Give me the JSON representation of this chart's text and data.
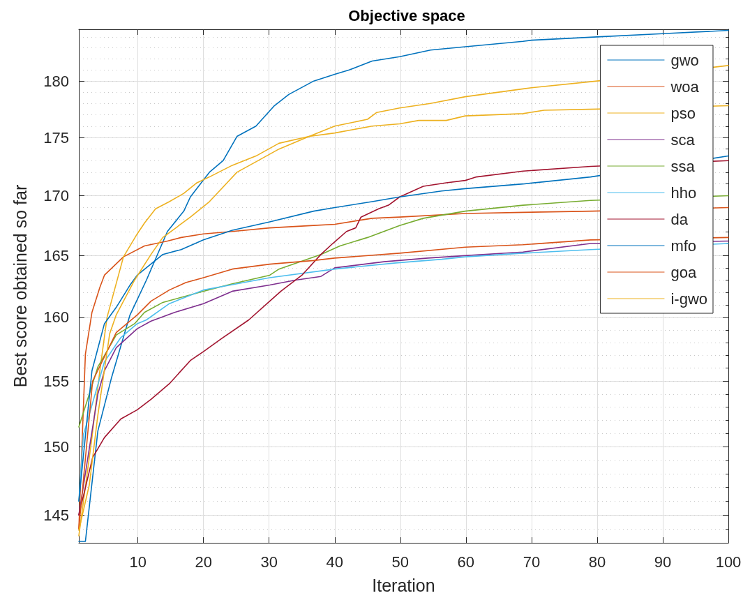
{
  "chart_data": {
    "type": "line",
    "title": "Objective space",
    "xlabel": "Iteration",
    "ylabel": "Best score obtained so far",
    "xlim": [
      1,
      100
    ],
    "xticks": [
      10,
      20,
      30,
      40,
      50,
      60,
      70,
      80,
      90,
      100
    ],
    "ylim": [
      143.0,
      184.7
    ],
    "yticks": [
      145,
      150,
      155,
      160,
      165,
      170,
      175,
      180
    ],
    "log": "y",
    "grid": true,
    "legend": "top right",
    "marker": "none",
    "line_style": "solid",
    "series": [
      {
        "name": "gwo",
        "color": "#0072bd",
        "x": [
          1,
          2,
          3.9,
          6,
          8.8,
          11.3,
          14.5,
          17,
          18,
          20.9,
          23,
          25.1,
          28,
          30.8,
          33,
          36.8,
          40,
          42.2,
          45.7,
          49.9,
          54.6,
          59.9,
          68.7,
          70,
          80,
          90,
          100
        ],
        "values": [
          143.1,
          143.1,
          151.2,
          155.3,
          160.2,
          163.0,
          167.0,
          168.7,
          169.9,
          172.0,
          173.0,
          175.1,
          176.0,
          177.8,
          178.8,
          180.0,
          180.6,
          181.0,
          181.8,
          182.2,
          182.8,
          183.1,
          183.6,
          183.7,
          184.0,
          184.3,
          184.6
        ]
      },
      {
        "name": "woa",
        "color": "#d95319",
        "x": [
          1,
          2,
          3,
          4.2,
          4.9,
          7.8,
          11,
          14.5,
          16.6,
          20,
          24.4,
          30.1,
          36.8,
          40,
          45.7,
          49.9,
          59.9,
          68.7,
          79.3,
          100
        ],
        "values": [
          144.0,
          157.1,
          160.4,
          162.4,
          163.4,
          164.9,
          165.8,
          166.2,
          166.5,
          166.8,
          167.0,
          167.3,
          167.5,
          167.6,
          168.1,
          168.2,
          168.5,
          168.6,
          168.7,
          169.0
        ]
      },
      {
        "name": "pso",
        "color": "#edb120",
        "x": [
          1,
          3,
          4.2,
          5.3,
          7.8,
          9.9,
          11,
          12.7,
          14.8,
          17,
          19,
          20.9,
          24.4,
          28,
          31.5,
          36.1,
          40,
          45.7,
          49.9,
          52.8,
          57,
          59.9,
          68.7,
          71.9,
          80,
          100
        ],
        "values": [
          143.5,
          150.7,
          155.8,
          160.0,
          164.9,
          166.8,
          167.7,
          168.9,
          169.5,
          170.2,
          171.1,
          171.6,
          172.6,
          173.4,
          174.5,
          175.1,
          175.4,
          176.0,
          176.2,
          176.5,
          176.5,
          176.9,
          177.1,
          177.4,
          177.5,
          177.8
        ]
      },
      {
        "name": "sca",
        "color": "#7e2f8e",
        "x": [
          1,
          3.9,
          4.9,
          6.7,
          9.9,
          12,
          15.6,
          20,
          24.4,
          30.1,
          34,
          37.9,
          40,
          47.5,
          54.2,
          59.9,
          68.7,
          79,
          100
        ],
        "values": [
          145.0,
          154.0,
          155.8,
          157.6,
          159.1,
          159.7,
          160.4,
          161.1,
          162.1,
          162.6,
          163.0,
          163.3,
          164.0,
          164.5,
          164.8,
          165.0,
          165.3,
          166.0,
          166.2
        ]
      },
      {
        "name": "ssa",
        "color": "#77ac30",
        "x": [
          1,
          3.9,
          6.7,
          9.5,
          11,
          13.8,
          20,
          24.4,
          30.1,
          31.5,
          37.9,
          40.8,
          45,
          49.9,
          53.5,
          59.9,
          68.7,
          79,
          100
        ],
        "values": [
          151.5,
          156.1,
          158.6,
          159.5,
          160.4,
          161.2,
          162.1,
          162.7,
          163.4,
          163.9,
          165.1,
          165.8,
          166.5,
          167.5,
          168.1,
          168.7,
          169.2,
          169.6,
          170.0
        ]
      },
      {
        "name": "hho",
        "color": "#4dbeee",
        "x": [
          1,
          1.7,
          4.9,
          7.4,
          9.9,
          11.3,
          14.8,
          20,
          25.1,
          30.1,
          40,
          49.3,
          56.3,
          59.9,
          68.7,
          79,
          100
        ],
        "values": [
          146.0,
          150.9,
          156.5,
          158.4,
          159.5,
          159.8,
          161.1,
          162.2,
          162.7,
          163.2,
          163.9,
          164.4,
          164.7,
          164.9,
          165.2,
          165.5,
          166.0
        ]
      },
      {
        "name": "da",
        "color": "#a2142f",
        "x": [
          1,
          3.1,
          4.9,
          7.4,
          9.9,
          12,
          14.8,
          18,
          20,
          22.7,
          26.9,
          30.1,
          31.8,
          35,
          37.9,
          39.7,
          41.8,
          43.2,
          44,
          46.7,
          48.2,
          49.9,
          53.5,
          57,
          59.9,
          61.6,
          68.7,
          79,
          100
        ],
        "values": [
          145.0,
          149.2,
          150.7,
          152.1,
          152.8,
          153.6,
          154.8,
          156.6,
          157.3,
          158.3,
          159.8,
          161.3,
          162.1,
          163.4,
          165.1,
          166.0,
          167.0,
          167.3,
          168.2,
          168.9,
          169.2,
          169.9,
          170.8,
          171.1,
          171.3,
          171.6,
          172.1,
          172.5,
          173.0
        ]
      },
      {
        "name": "mfo",
        "color": "#0072bd",
        "x": [
          1,
          3,
          4.9,
          6.7,
          8.8,
          9.9,
          13.8,
          16.6,
          20,
          24.4,
          30.1,
          36.8,
          40,
          45.7,
          49.9,
          56.3,
          59.9,
          68.7,
          79,
          100
        ],
        "values": [
          146.0,
          155.8,
          159.5,
          160.8,
          162.6,
          163.4,
          165.1,
          165.5,
          166.3,
          167.1,
          167.8,
          168.7,
          169.0,
          169.5,
          169.9,
          170.4,
          170.6,
          171.0,
          171.6,
          173.4
        ]
      },
      {
        "name": "goa",
        "color": "#d95319",
        "x": [
          1,
          3.1,
          6.7,
          9.9,
          12,
          14.8,
          17.3,
          20,
          24.4,
          30.1,
          36.8,
          40,
          49.9,
          59.9,
          68.7,
          79,
          100
        ],
        "values": [
          144.0,
          155.0,
          158.8,
          160.2,
          161.3,
          162.2,
          162.8,
          163.2,
          163.9,
          164.3,
          164.6,
          164.8,
          165.2,
          165.7,
          165.9,
          166.3,
          166.5
        ]
      },
      {
        "name": "i-gwo",
        "color": "#edb120",
        "x": [
          1,
          2.6,
          3.9,
          5.7,
          6.7,
          9.5,
          12,
          13.8,
          18,
          20.9,
          25.1,
          28,
          31.5,
          36.1,
          40,
          45,
          46.4,
          49.9,
          54.6,
          59.9,
          68.7,
          70,
          80,
          100
        ],
        "values": [
          143.9,
          147.2,
          152.4,
          158.7,
          160.2,
          163.0,
          165.1,
          166.5,
          168.2,
          169.5,
          172.0,
          172.9,
          174.0,
          175.1,
          176.0,
          176.6,
          177.2,
          177.6,
          178.0,
          178.6,
          179.3,
          179.4,
          180.0,
          181.4
        ]
      }
    ]
  }
}
